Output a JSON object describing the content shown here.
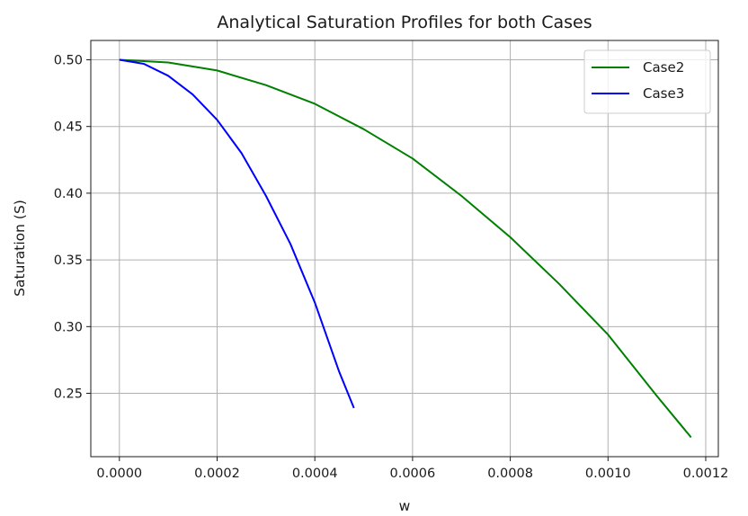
{
  "chart_data": {
    "type": "line",
    "title": "Analytical Saturation Profiles for both Cases",
    "xlabel": "w",
    "ylabel": "Saturation (S)",
    "xlim": [
      -5.85e-05,
      0.0012258
    ],
    "ylim": [
      0.2025,
      0.5145
    ],
    "xticks": [
      0.0,
      0.0002,
      0.0004,
      0.0006,
      0.0008,
      0.001,
      0.0012
    ],
    "xtick_labels": [
      "0.0000",
      "0.0002",
      "0.0004",
      "0.0006",
      "0.0008",
      "0.0010",
      "0.0012"
    ],
    "yticks": [
      0.25,
      0.3,
      0.35,
      0.4,
      0.45,
      0.5
    ],
    "ytick_labels": [
      "0.25",
      "0.30",
      "0.35",
      "0.40",
      "0.45",
      "0.50"
    ],
    "grid": true,
    "legend_position": "top-right",
    "series": [
      {
        "name": "Case2",
        "color": "#008000",
        "x": [
          0.0,
          0.0001,
          0.0002,
          0.0003,
          0.0004,
          0.0005,
          0.0006,
          0.0007,
          0.0008,
          0.0009,
          0.001,
          0.0011,
          0.00117
        ],
        "y": [
          0.5,
          0.498,
          0.492,
          0.481,
          0.467,
          0.448,
          0.426,
          0.398,
          0.367,
          0.332,
          0.294,
          0.248,
          0.217
        ]
      },
      {
        "name": "Case3",
        "color": "#0000ff",
        "x": [
          0.0,
          5e-05,
          0.0001,
          0.00015,
          0.0002,
          0.00025,
          0.0003,
          0.00035,
          0.0004,
          0.00045,
          0.00048
        ],
        "y": [
          0.5,
          0.497,
          0.488,
          0.474,
          0.455,
          0.43,
          0.398,
          0.362,
          0.318,
          0.266,
          0.239
        ]
      }
    ]
  }
}
